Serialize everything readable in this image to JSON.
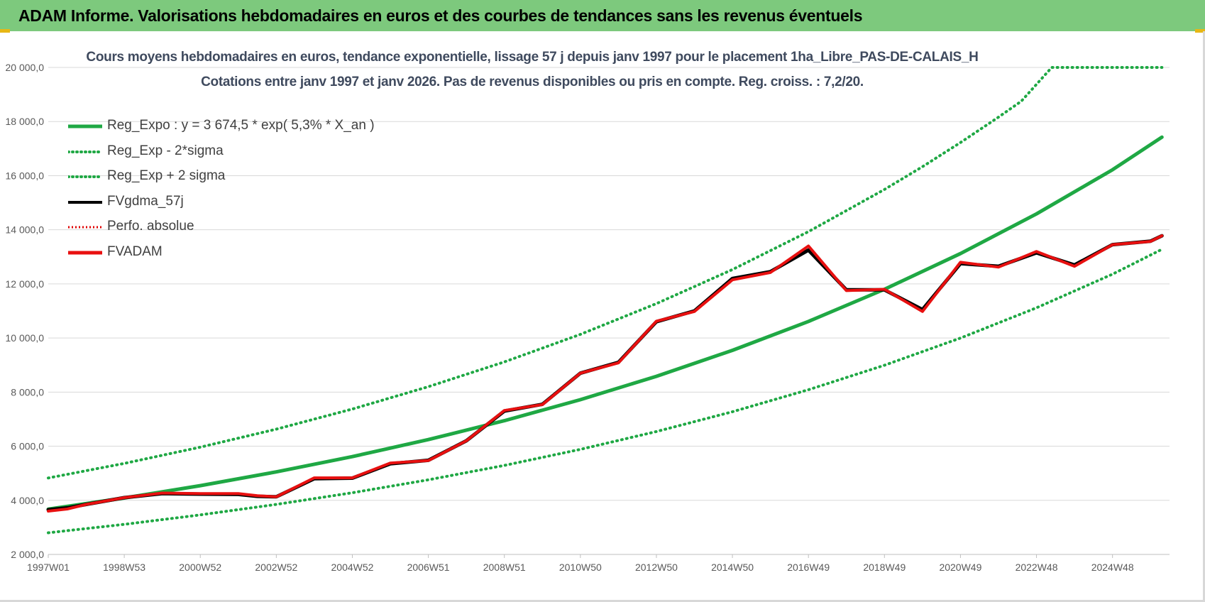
{
  "banner": {
    "title": "ADAM Informe. Valorisations hebdomadaires en euros et des courbes de tendances sans les revenus éventuels"
  },
  "chart_data": {
    "type": "line",
    "title": "Cours moyens hebdomadaires en euros, tendance exponentielle, lissage 57 j depuis janv 1997 pour le placement 1ha_Libre_PAS-DE-CALAIS_H",
    "subtitle": "Cotations entre janv 1997 et janv 2026. Pas de revenus disponibles ou pris en compte. Reg. croiss. : 7,2/20.",
    "xlabel": "",
    "ylabel": "",
    "ylim": [
      2000,
      20000
    ],
    "xlim": [
      1997.0,
      2026.5
    ],
    "grid": true,
    "legend_position": "top-left",
    "y_ticks": [
      "2 000,0",
      "4 000,0",
      "6 000,0",
      "8 000,0",
      "10 000,0",
      "12 000,0",
      "14 000,0",
      "16 000,0",
      "18 000,0",
      "20 000,0"
    ],
    "y_tick_values": [
      2000,
      4000,
      6000,
      8000,
      10000,
      12000,
      14000,
      16000,
      18000,
      20000
    ],
    "x_ticks": [
      "1997W01",
      "1998W53",
      "2000W52",
      "2002W52",
      "2004W52",
      "2006W51",
      "2008W51",
      "2010W50",
      "2012W50",
      "2014W50",
      "2016W49",
      "2018W49",
      "2020W49",
      "2022W48",
      "2024W48"
    ],
    "x_tick_values": [
      1997.0,
      1999.0,
      2001.0,
      2003.0,
      2005.0,
      2007.0,
      2009.0,
      2011.0,
      2013.0,
      2015.0,
      2017.0,
      2019.0,
      2021.0,
      2023.0,
      2025.0
    ],
    "colors": {
      "reg_expo": "#1fa844",
      "reg_band": "#1fa844",
      "fvgdma": "#000000",
      "perfo": "#e00000",
      "fvadam": "#e81010"
    },
    "series": [
      {
        "name": "Reg_Expo : y = 3 674,5 * exp( 5,3% *  X_an )",
        "style": "solid-thick",
        "color": "#1fa844",
        "x": [
          1997.0,
          1999.0,
          2001.0,
          2003.0,
          2005.0,
          2007.0,
          2009.0,
          2011.0,
          2013.0,
          2015.0,
          2017.0,
          2019.0,
          2021.0,
          2023.0,
          2025.0,
          2026.3
        ],
        "values": [
          3675,
          4086,
          4543,
          5051,
          5617,
          6245,
          6943,
          7720,
          8584,
          9544,
          10612,
          11799,
          13119,
          14587,
          16219,
          17424
        ]
      },
      {
        "name": "Reg_Exp - 2*sigma",
        "style": "dotted",
        "color": "#1fa844",
        "x": [
          1997.0,
          1999.0,
          2001.0,
          2003.0,
          2005.0,
          2007.0,
          2009.0,
          2011.0,
          2013.0,
          2015.0,
          2017.0,
          2019.0,
          2021.0,
          2023.0,
          2025.0,
          2026.3
        ],
        "values": [
          2800,
          3113,
          3462,
          3849,
          4280,
          4759,
          5291,
          5883,
          6541,
          7273,
          8087,
          8992,
          9997,
          11116,
          12359,
          13278
        ]
      },
      {
        "name": "Reg_Exp + 2 sigma",
        "style": "dotted",
        "color": "#1fa844",
        "x": [
          1997.0,
          1999.0,
          2001.0,
          2003.0,
          2005.0,
          2007.0,
          2009.0,
          2011.0,
          2013.0,
          2015.0,
          2017.0,
          2019.0,
          2020.0,
          2021.0,
          2022.0,
          2022.6,
          2023.4,
          2024.0,
          2025.0,
          2026.3
        ],
        "values": [
          4826,
          5364,
          5965,
          6632,
          7374,
          8199,
          9116,
          10135,
          11269,
          12530,
          13932,
          15490,
          16333,
          17224,
          18162,
          18750,
          20000,
          20000,
          20000,
          20000
        ]
      },
      {
        "name": "FVgdma_57j",
        "style": "solid",
        "color": "#000000",
        "x": [
          1997.0,
          1997.5,
          1998.0,
          1999.0,
          2000.0,
          2001.0,
          2002.0,
          2002.5,
          2003.0,
          2004.0,
          2005.0,
          2006.0,
          2007.0,
          2008.0,
          2009.0,
          2010.0,
          2011.0,
          2012.0,
          2013.0,
          2014.0,
          2015.0,
          2016.0,
          2017.0,
          2018.0,
          2019.0,
          2020.0,
          2021.0,
          2022.0,
          2023.0,
          2024.0,
          2025.0,
          2026.0,
          2026.3
        ],
        "values": [
          3650,
          3720,
          3850,
          4100,
          4250,
          4230,
          4220,
          4150,
          4130,
          4800,
          4820,
          5350,
          5480,
          6200,
          7300,
          7550,
          8700,
          9100,
          10600,
          11000,
          12200,
          12450,
          13250,
          11780,
          11780,
          11050,
          12750,
          12650,
          13150,
          12700,
          13450,
          13580,
          13780
        ]
      },
      {
        "name": "Perfo. absolue",
        "style": "dotted",
        "color": "#e00000",
        "x": [
          1997.0,
          1997.5,
          1998.0,
          1999.0,
          2000.0,
          2001.0,
          2002.0,
          2002.5,
          2003.0,
          2004.0,
          2005.0,
          2006.0,
          2007.0,
          2008.0,
          2009.0,
          2010.0,
          2011.0,
          2012.0,
          2013.0,
          2014.0,
          2015.0,
          2016.0,
          2017.0,
          2018.0,
          2019.0,
          2020.0,
          2021.0,
          2022.0,
          2023.0,
          2024.0,
          2025.0,
          2026.0,
          2026.3
        ],
        "values": [
          3600,
          3680,
          3850,
          4100,
          4270,
          4250,
          4250,
          4170,
          4130,
          4830,
          4830,
          5380,
          5470,
          6200,
          7320,
          7540,
          8700,
          9080,
          10620,
          10980,
          12150,
          12420,
          13400,
          11750,
          11800,
          10980,
          12800,
          12620,
          13200,
          12650,
          13450,
          13570,
          13780
        ]
      },
      {
        "name": "FVADAM",
        "style": "solid-thick",
        "color": "#e81010",
        "x": [
          1997.0,
          1997.5,
          1998.0,
          1999.0,
          2000.0,
          2001.0,
          2002.0,
          2002.5,
          2003.0,
          2004.0,
          2005.0,
          2006.0,
          2007.0,
          2008.0,
          2009.0,
          2010.0,
          2011.0,
          2012.0,
          2013.0,
          2014.0,
          2015.0,
          2016.0,
          2017.0,
          2018.0,
          2019.0,
          2020.0,
          2021.0,
          2022.0,
          2023.0,
          2024.0,
          2025.0,
          2026.0,
          2026.3
        ],
        "values": [
          3600,
          3680,
          3850,
          4100,
          4270,
          4250,
          4250,
          4170,
          4130,
          4830,
          4830,
          5380,
          5470,
          6200,
          7320,
          7540,
          8700,
          9080,
          10620,
          10980,
          12150,
          12420,
          13400,
          11750,
          11800,
          10980,
          12800,
          12620,
          13200,
          12650,
          13450,
          13570,
          13780
        ]
      }
    ]
  }
}
